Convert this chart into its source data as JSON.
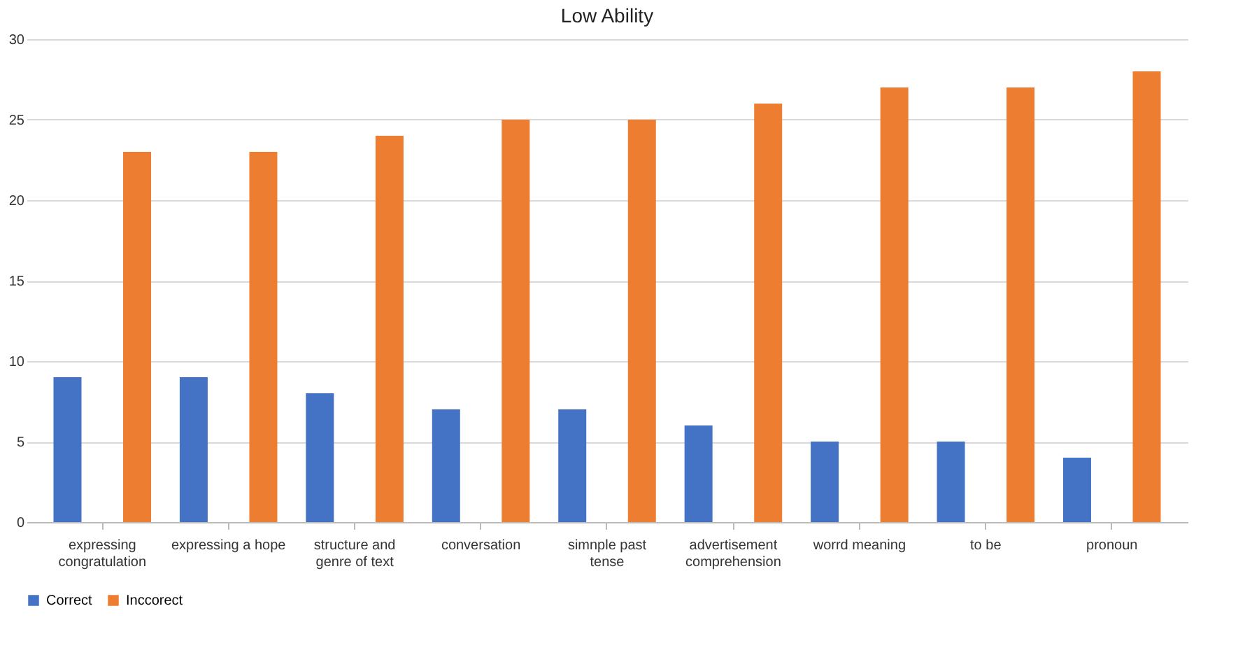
{
  "chart_data": {
    "type": "bar",
    "title": "Low Ability",
    "categories": [
      "expressing congratulation",
      "expressing a hope",
      "structure and genre of text",
      "conversation",
      "simnple past tense",
      "advertisement comprehension",
      "worrd meaning",
      "to be",
      "pronoun"
    ],
    "series": [
      {
        "name": "Correct",
        "color": "#4472c4",
        "values": [
          9,
          9,
          8,
          7,
          7,
          6,
          5,
          5,
          4
        ]
      },
      {
        "name": "Inccorect",
        "color": "#ed7d31",
        "values": [
          23,
          23,
          24,
          25,
          25,
          26,
          27,
          27,
          28
        ]
      }
    ],
    "ylim": [
      0,
      30
    ],
    "yticks": [
      0,
      5,
      10,
      15,
      20,
      25,
      30
    ],
    "grid": "y",
    "legend": "bottom"
  }
}
